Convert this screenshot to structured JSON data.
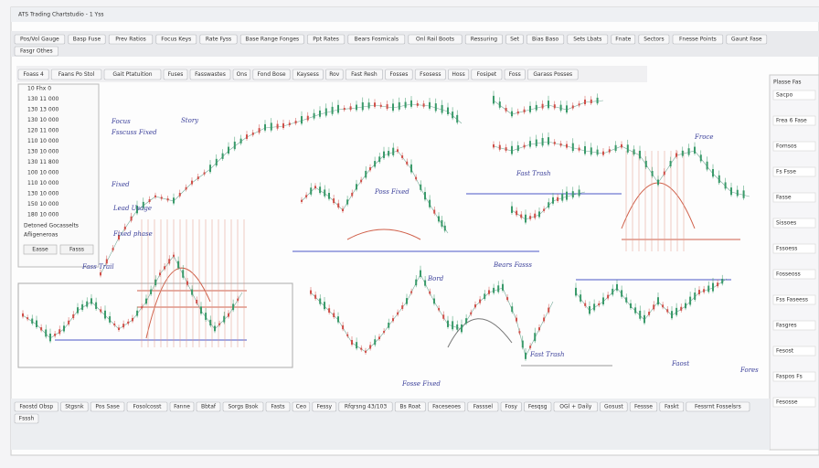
{
  "window": {
    "title": "ATS Trading Chartstudio - 1 Yss"
  },
  "toolbar": {
    "buttons": [
      "Pos/Vol Gauge",
      "Basp Fuse",
      "Prev Ratios",
      "Focus Keys",
      "Rate Fyss",
      "Base Range Fonges",
      "Ppt Rates",
      "Bears Fosmicals",
      "Onl Rail Boots",
      "Ressuring",
      "Set",
      "Bias Baso",
      "Sets Lbats",
      "Fnate",
      "Sectors",
      "Fnesse Points",
      "Gaunt Fase",
      "Fasgr Othes"
    ]
  },
  "chart_toolbar": {
    "buttons": [
      "Foass 4",
      "Faans Po Stol",
      "Gait Ptatuition",
      "Fuses",
      "Fasswastes",
      "Ons",
      "Fond Bose",
      "Kaysess",
      "Rov",
      "Fast Resh",
      "Fosses",
      "Fsosess",
      "Hoss",
      "Fosipet",
      "Foss",
      "Garass Posses"
    ]
  },
  "left_panel": {
    "rows": [
      "10 Fhx 0",
      "130 11 000",
      "130 13 000",
      "130 10 000",
      "120 11 000",
      "110 10 000",
      "130 10 000",
      "130 11 800",
      "100 10 000",
      "110 10 000",
      "130 10 000",
      "150 10 000",
      "180 10 000"
    ],
    "footer": [
      "Detoned Gocasselts",
      "Afligeneroas"
    ],
    "buttons": [
      "Easse",
      "Fasss"
    ]
  },
  "right_panel": {
    "header": "Plasse Fas",
    "items": [
      "Sacpo",
      "Frea 6 Fase",
      "Fomsos",
      "Fs Fsse",
      "Fasse",
      "Sissoes",
      "Fssoess",
      "Fosseoss",
      "Fss Faseess",
      "Fasgres",
      "Fesost",
      "Faspos Fs",
      "Fesosse"
    ]
  },
  "bottom_bar": {
    "buttons": [
      "Faostd Obsp",
      "Stgsnk",
      "Pos Sase",
      "Fosolcosst",
      "Fanne",
      "Bbtaf",
      "Sorgs Bsok",
      "Fasts",
      "Ceo",
      "Fessy",
      "Rfqrsng 43/103",
      "Bs Roat",
      "Faceseoes",
      "Fasssel",
      "Fosy",
      "Fesqsg",
      "OGl + Daily",
      "Gosust",
      "Fessse",
      "Faskt",
      "Fessrnt Fosselsrs",
      "Fsssh"
    ]
  },
  "annotations": [
    "Focus",
    "Fsscuss Fixed",
    "Story",
    "Fixed",
    "Lead Usage",
    "Fixed phase",
    "Fast Trash",
    "Bord",
    "Fass Trail",
    "Bears Fasss",
    "Poss Fixed",
    "Fast Trash",
    "Froce",
    "Fosse Fixed",
    "Faost",
    "Fores"
  ]
}
